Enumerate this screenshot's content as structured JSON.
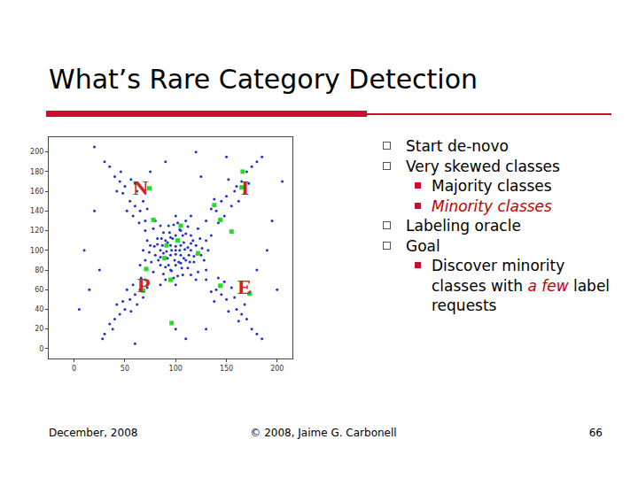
{
  "slide": {
    "title": "What’s Rare Category Detection",
    "bullets": [
      {
        "level": 1,
        "runs": [
          {
            "text": "Start de-novo"
          }
        ]
      },
      {
        "level": 1,
        "runs": [
          {
            "text": "Very skewed classes"
          }
        ]
      },
      {
        "level": 2,
        "runs": [
          {
            "text": "Majority classes"
          }
        ]
      },
      {
        "level": 2,
        "runs": [
          {
            "text": "Minority classes",
            "color": "#c00000"
          }
        ]
      },
      {
        "level": 1,
        "runs": [
          {
            "text": "Labeling oracle"
          }
        ]
      },
      {
        "level": 1,
        "runs": [
          {
            "text": "Goal"
          }
        ]
      },
      {
        "level": 2,
        "runs": [
          {
            "text": "Discover minority classes with "
          },
          {
            "text": "a few",
            "color": "#c00000"
          },
          {
            "text": " label requests"
          }
        ]
      }
    ],
    "footer": {
      "left": "December, 2008",
      "center": "© 2008, Jaime G. Carbonell",
      "right": "66"
    }
  },
  "chart_data": {
    "type": "scatter",
    "grid": false,
    "xlim": [
      -25,
      215
    ],
    "ylim": [
      -10,
      215
    ],
    "xticks": [
      0,
      50,
      100,
      150,
      200
    ],
    "yticks": [
      0,
      20,
      40,
      60,
      80,
      100,
      120,
      140,
      160,
      180,
      200
    ],
    "series": [
      {
        "color": "#1f2fd0",
        "marker": "circle",
        "x": [
          100,
          95,
          105,
          90,
          110,
          85,
          115,
          100,
          100,
          92,
          108,
          92,
          108,
          80,
          120,
          95,
          105,
          88,
          112,
          82,
          118,
          75,
          125,
          98,
          102,
          70,
          130,
          85,
          115,
          85,
          115,
          78,
          122,
          78,
          122,
          95,
          105,
          97,
          103,
          88,
          112,
          93,
          107,
          72,
          128,
          90,
          110,
          68,
          132,
          100,
          100,
          83,
          117,
          90,
          110,
          96,
          104,
          100,
          100,
          87,
          113,
          95,
          105,
          76,
          124,
          88,
          112,
          80,
          120,
          70,
          130,
          65,
          135,
          85,
          115,
          94,
          106,
          118,
          82,
          101,
          99,
          91,
          109,
          86,
          114,
          74,
          126,
          98,
          102,
          93,
          107,
          85,
          115,
          79,
          121,
          104,
          96,
          70,
          65,
          60,
          55,
          62,
          50,
          45,
          58,
          68,
          40,
          52,
          35,
          48,
          72,
          56,
          42,
          30,
          64,
          46,
          60,
          130,
          140,
          145,
          150,
          160,
          155,
          165,
          170,
          138,
          148,
          175,
          158,
          135,
          152,
          168,
          180,
          142,
          162,
          172,
          185,
          70,
          65,
          60,
          55,
          50,
          45,
          58,
          40,
          68,
          52,
          35,
          62,
          48,
          30,
          72,
          56,
          42,
          66,
          38,
          28,
          130,
          140,
          145,
          150,
          160,
          155,
          165,
          170,
          138,
          148,
          175,
          158,
          135,
          152,
          168,
          180,
          142,
          162,
          172,
          185,
          10,
          15,
          20,
          25,
          190,
          195,
          180,
          200,
          100,
          110,
          90,
          120,
          130,
          75,
          125,
          5,
          205,
          60,
          150,
          20
        ],
        "y": [
          100,
          105,
          95,
          110,
          90,
          100,
          100,
          85,
          115,
          92,
          108,
          108,
          92,
          95,
          105,
          80,
          120,
          118,
          82,
          112,
          88,
          105,
          95,
          72,
          128,
          90,
          110,
          85,
          115,
          125,
          75,
          78,
          122,
          122,
          78,
          95,
          105,
          112,
          88,
          97,
          103,
          125,
          75,
          110,
          90,
          70,
          130,
          100,
          100,
          65,
          135,
          90,
          110,
          83,
          117,
          100,
          100,
          96,
          104,
          105,
          95,
          113,
          87,
          88,
          112,
          76,
          124,
          130,
          70,
          120,
          80,
          85,
          115,
          65,
          135,
          118,
          82,
          94,
          106,
          110,
          90,
          99,
          101,
          112,
          88,
          98,
          102,
          126,
          74,
          85,
          115,
          93,
          107,
          104,
          96,
          121,
          79,
          130,
          140,
          145,
          150,
          160,
          165,
          170,
          135,
          150,
          175,
          140,
          185,
          158,
          142,
          172,
          160,
          190,
          128,
          180,
          168,
          130,
          140,
          150,
          155,
          165,
          145,
          170,
          180,
          152,
          135,
          185,
          160,
          142,
          172,
          158,
          190,
          128,
          150,
          168,
          195,
          70,
          60,
          55,
          50,
          40,
          35,
          65,
          30,
          52,
          60,
          25,
          45,
          48,
          15,
          62,
          38,
          45,
          72,
          20,
          10,
          70,
          60,
          55,
          50,
          40,
          62,
          35,
          30,
          48,
          68,
          20,
          52,
          58,
          38,
          45,
          15,
          72,
          28,
          55,
          10,
          100,
          60,
          140,
          80,
          100,
          130,
          80,
          60,
          20,
          10,
          190,
          200,
          20,
          180,
          175,
          40,
          170,
          5,
          195,
          205
        ]
      },
      {
        "color": "#22dd22",
        "marker": "square",
        "x": [
          74,
          166,
          165,
          138,
          78,
          105,
          144,
          155,
          102,
          91,
          122,
          89,
          71,
          95,
          144,
          68,
          173,
          96
        ],
        "y": [
          163,
          180,
          164,
          146,
          131,
          125,
          131,
          119,
          110,
          105,
          97,
          92,
          81,
          70,
          64,
          59,
          56,
          26
        ]
      }
    ],
    "annotations": [
      {
        "text": "N",
        "x": 66,
        "y": 164,
        "color": "#d42020"
      },
      {
        "text": "I",
        "x": 168,
        "y": 164,
        "color": "#d42020"
      },
      {
        "text": "P",
        "x": 69,
        "y": 65,
        "color": "#d42020"
      },
      {
        "text": "E",
        "x": 168,
        "y": 63,
        "color": "#d42020"
      }
    ]
  }
}
